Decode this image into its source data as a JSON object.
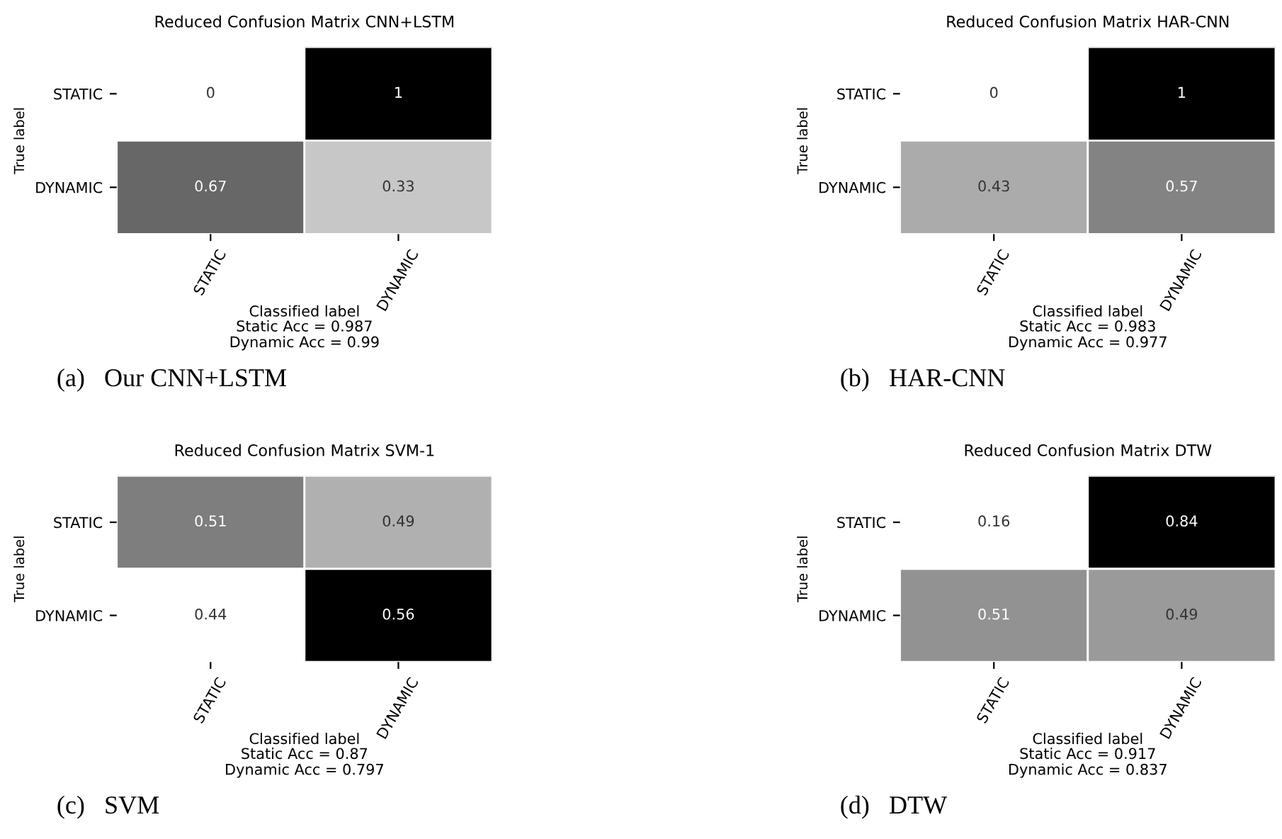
{
  "chart_data": [
    {
      "type": "heatmap",
      "title": "Reduced Confusion Matrix CNN+LSTM",
      "xlabel": "Classified label",
      "ylabel": "True label",
      "categories": [
        "STATIC",
        "DYNAMIC"
      ],
      "y_categories": [
        "STATIC",
        "DYNAMIC"
      ],
      "cells": [
        [
          0,
          1
        ],
        [
          0.67,
          0.33
        ]
      ],
      "data_labels": true,
      "annotations": [
        "Static Acc = 0.987",
        "Dynamic Acc = 0.99",
        "(a)   Our CNN+LSTM"
      ]
    },
    {
      "type": "heatmap",
      "title": "Reduced Confusion Matrix HAR-CNN",
      "xlabel": "Classified label",
      "ylabel": "True label",
      "categories": [
        "STATIC",
        "DYNAMIC"
      ],
      "y_categories": [
        "STATIC",
        "DYNAMIC"
      ],
      "cells": [
        [
          0,
          1
        ],
        [
          0.43,
          0.57
        ]
      ],
      "data_labels": true,
      "annotations": [
        "Static Acc = 0.983",
        "Dynamic Acc = 0.977",
        "(b)   HAR-CNN"
      ]
    },
    {
      "type": "heatmap",
      "title": "Reduced Confusion Matrix SVM-1",
      "xlabel": "Classified label",
      "ylabel": "True label",
      "categories": [
        "STATIC",
        "DYNAMIC"
      ],
      "y_categories": [
        "STATIC",
        "DYNAMIC"
      ],
      "cells": [
        [
          0.51,
          0.49
        ],
        [
          0.44,
          0.56
        ]
      ],
      "data_labels": true,
      "annotations": [
        "Static Acc = 0.87",
        "Dynamic Acc = 0.797",
        "(c)   SVM"
      ]
    },
    {
      "type": "heatmap",
      "title": "Reduced Confusion Matrix DTW",
      "xlabel": "Classified label",
      "ylabel": "True label",
      "categories": [
        "STATIC",
        "DYNAMIC"
      ],
      "y_categories": [
        "STATIC",
        "DYNAMIC"
      ],
      "cells": [
        [
          0.16,
          0.84
        ],
        [
          0.51,
          0.49
        ]
      ],
      "data_labels": true,
      "annotations": [
        "Static Acc = 0.917",
        "Dynamic Acc = 0.837",
        "(d)   DTW"
      ]
    }
  ]
}
